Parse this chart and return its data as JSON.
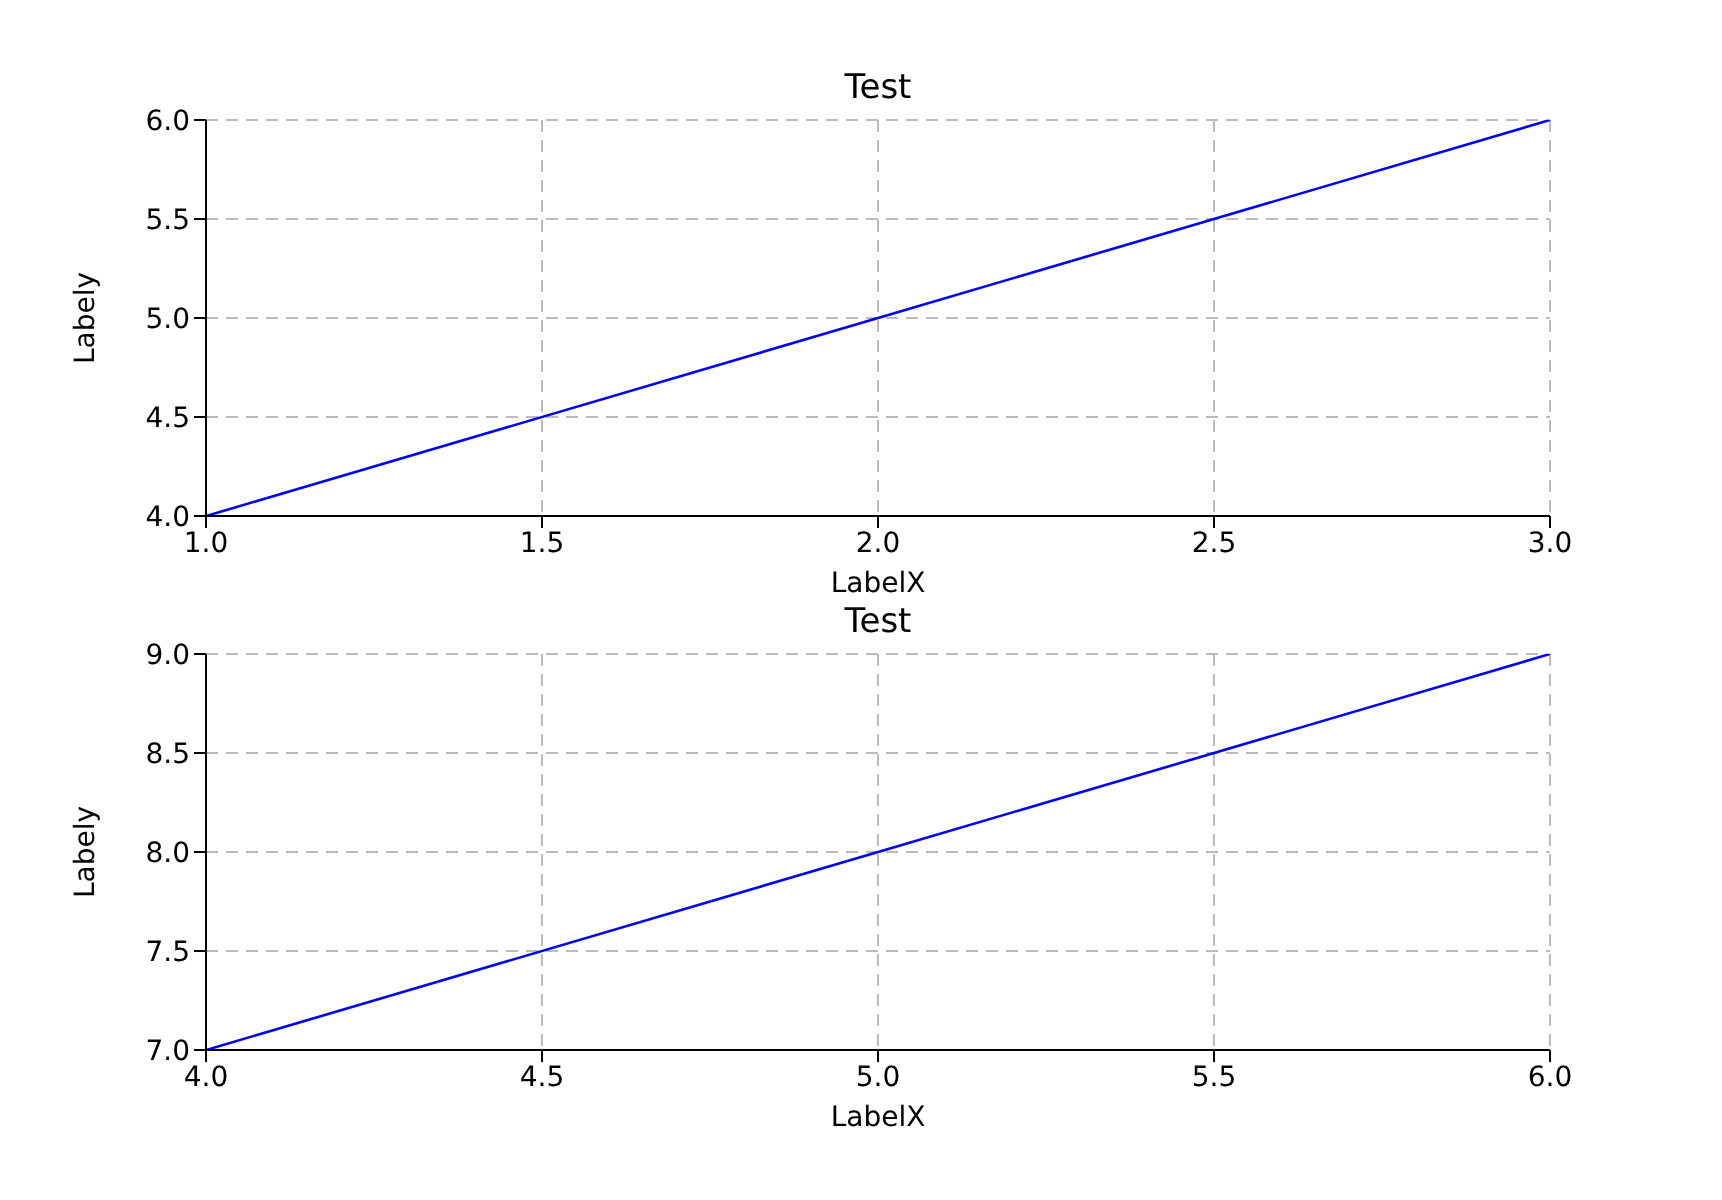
{
  "chart_data": [
    {
      "type": "line",
      "title": "Test",
      "xlabel": "LabelX",
      "ylabel": "Labely",
      "x": [
        1,
        2,
        3
      ],
      "series": [
        {
          "color": "#0000ff",
          "values": [
            4,
            5,
            6
          ]
        }
      ],
      "xlim": [
        1,
        3
      ],
      "ylim": [
        4,
        6
      ],
      "xticks": [
        {
          "value": 1,
          "label": "1.0"
        },
        {
          "value": 1.5,
          "label": "1.5"
        },
        {
          "value": 2,
          "label": "2.0"
        },
        {
          "value": 2.5,
          "label": "2.5"
        },
        {
          "value": 3,
          "label": "3.0"
        }
      ],
      "yticks": [
        {
          "value": 4,
          "label": "4.0"
        },
        {
          "value": 4.5,
          "label": "4.5"
        },
        {
          "value": 5,
          "label": "5.0"
        },
        {
          "value": 5.5,
          "label": "5.5"
        },
        {
          "value": 6,
          "label": "6.0"
        }
      ],
      "grid": true
    },
    {
      "type": "line",
      "title": "Test",
      "xlabel": "LabelX",
      "ylabel": "Labely",
      "x": [
        4,
        5,
        6
      ],
      "series": [
        {
          "color": "#0000ff",
          "values": [
            7,
            8,
            9
          ]
        }
      ],
      "xlim": [
        4,
        6
      ],
      "ylim": [
        7,
        9
      ],
      "xticks": [
        {
          "value": 4,
          "label": "4.0"
        },
        {
          "value": 4.5,
          "label": "4.5"
        },
        {
          "value": 5,
          "label": "5.0"
        },
        {
          "value": 5.5,
          "label": "5.5"
        },
        {
          "value": 6,
          "label": "6.0"
        }
      ],
      "yticks": [
        {
          "value": 7,
          "label": "7.0"
        },
        {
          "value": 7.5,
          "label": "7.5"
        },
        {
          "value": 8,
          "label": "8.0"
        },
        {
          "value": 8.5,
          "label": "8.5"
        },
        {
          "value": 9,
          "label": "9.0"
        }
      ],
      "grid": true
    }
  ]
}
